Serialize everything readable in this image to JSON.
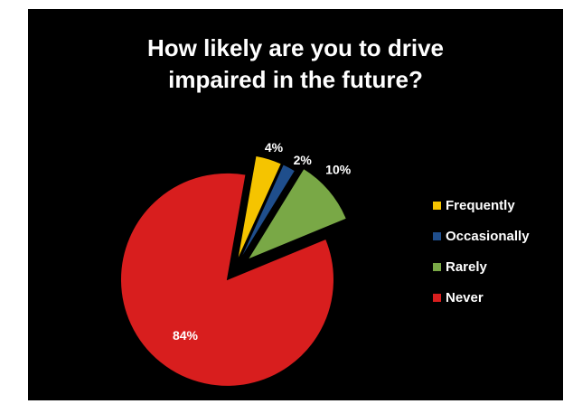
{
  "chart_data": {
    "type": "pie",
    "title": "How likely are you to drive\nimpaired in the future?",
    "slices": [
      {
        "label": "Frequently",
        "value": 4,
        "data_label": "4%",
        "color": "#f5c400"
      },
      {
        "label": "Occasionally",
        "value": 2,
        "data_label": "2%",
        "color": "#1f4e8c"
      },
      {
        "label": "Rarely",
        "value": 10,
        "data_label": "10%",
        "color": "#79a846"
      },
      {
        "label": "Never",
        "value": 84,
        "data_label": "84%",
        "color": "#d81e1e"
      }
    ],
    "legend_position": "right",
    "exploded": true,
    "background": "#000000"
  }
}
